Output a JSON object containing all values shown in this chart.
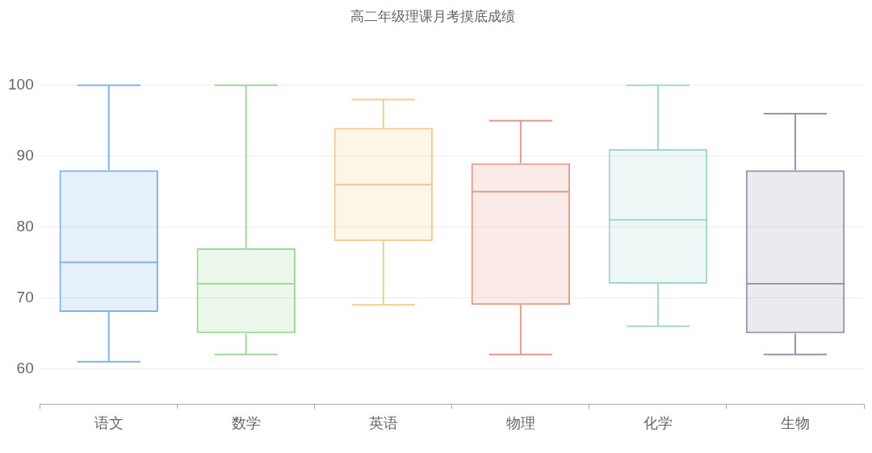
{
  "chart_data": {
    "type": "box",
    "title": "高二年级理课月考摸底成绩",
    "categories": [
      "语文",
      "数学",
      "英语",
      "物理",
      "化学",
      "生物"
    ],
    "boxes": [
      {
        "low": 61,
        "q1": 68,
        "median": 75,
        "q3": 88,
        "high": 100
      },
      {
        "low": 62,
        "q1": 65,
        "median": 72,
        "q3": 77,
        "high": 100
      },
      {
        "low": 69,
        "q1": 78,
        "median": 86,
        "q3": 94,
        "high": 98
      },
      {
        "low": 62,
        "q1": 69,
        "median": 85,
        "q3": 89,
        "high": 95
      },
      {
        "low": 66,
        "q1": 72,
        "median": 81,
        "q3": 91,
        "high": 100
      },
      {
        "low": 62,
        "q1": 65,
        "median": 72,
        "q3": 88,
        "high": 96
      }
    ],
    "colors": [
      "#84b3e6",
      "#a0d89a",
      "#efcd8a",
      "#e49a8d",
      "#a2d6d0",
      "#9a95ad"
    ],
    "ylim": [
      55,
      100
    ],
    "yticks": [
      60,
      70,
      80,
      90,
      100
    ],
    "grid": "y"
  }
}
